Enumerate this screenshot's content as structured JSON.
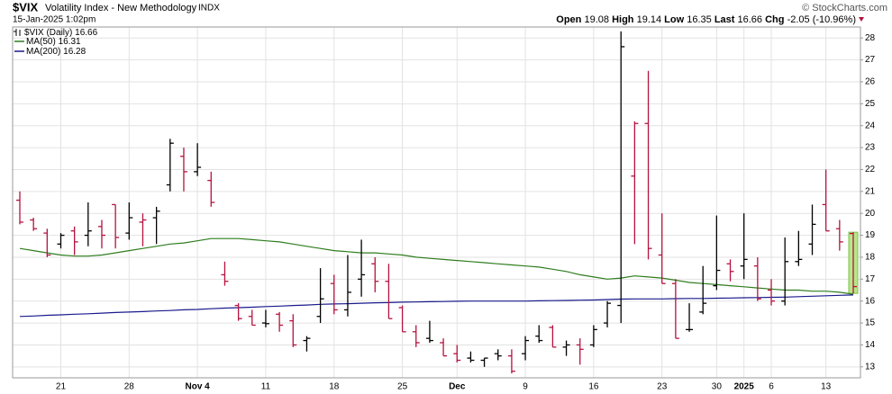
{
  "chart_data": {
    "type": "ohlc",
    "title": "$VIX",
    "subtitle": "Volatility Index - New Methodology",
    "exchange": "INDX",
    "date": "15-Jan-2025 1:02pm",
    "credit": "© StockCharts.com",
    "quote_labels": [
      "Open",
      "High",
      "Low",
      "Last",
      "Chg"
    ],
    "change": "-2.05 (-10.96%)",
    "price_name": "$VIX (Daily)",
    "up_color": "#000000",
    "down_color": "#b5123f",
    "highlight_color": "#b8e68a",
    "categories": [
      null,
      null,
      null,
      "21",
      null,
      null,
      null,
      null,
      "28",
      null,
      null,
      null,
      null,
      "Nov 4",
      null,
      null,
      null,
      null,
      "11",
      null,
      null,
      null,
      null,
      "18",
      null,
      null,
      null,
      null,
      "25",
      null,
      null,
      null,
      "Dec",
      null,
      null,
      null,
      null,
      "9",
      null,
      null,
      null,
      null,
      "16",
      null,
      null,
      null,
      null,
      "23",
      null,
      null,
      null,
      "30",
      null,
      "2025",
      null,
      "6",
      null,
      null,
      null,
      "13",
      null,
      null
    ],
    "open": [
      20.6,
      19.7,
      19.1,
      18.6,
      19.2,
      19.0,
      19.4,
      20.4,
      19.1,
      19.6,
      19.8,
      21.3,
      22.6,
      21.9,
      21.5,
      17.2,
      15.8,
      15.3,
      15.0,
      15.4,
      15.1,
      14.2,
      15.3,
      16.8,
      15.6,
      17.0,
      17.7,
      16.9,
      15.7,
      14.6,
      14.3,
      14.1,
      13.6,
      13.4,
      13.3,
      13.6,
      13.5,
      13.6,
      14.4,
      14.8,
      13.9,
      14.0,
      14.0,
      15.0,
      15.8,
      21.7,
      24.1,
      18.1,
      16.8,
      14.7,
      15.5,
      16.7,
      17.7,
      17.6,
      17.6,
      16.5,
      16.0,
      17.8,
      18.6,
      20.4,
      19.3,
      19.08
    ],
    "high": [
      21.0,
      19.8,
      19.3,
      19.1,
      19.4,
      20.5,
      19.7,
      20.4,
      20.5,
      20.0,
      20.3,
      23.4,
      23.0,
      23.2,
      21.9,
      17.8,
      15.9,
      15.6,
      15.6,
      15.5,
      15.4,
      14.4,
      17.5,
      17.2,
      18.1,
      18.8,
      18.0,
      17.7,
      15.8,
      14.9,
      15.1,
      14.3,
      14.0,
      13.7,
      13.4,
      13.8,
      13.8,
      14.4,
      14.9,
      14.9,
      14.2,
      14.3,
      14.9,
      16.0,
      28.3,
      24.2,
      26.5,
      20.0,
      17.0,
      15.9,
      17.6,
      19.9,
      17.9,
      20.0,
      18.0,
      17.0,
      18.9,
      19.2,
      20.4,
      22.0,
      19.7,
      19.14
    ],
    "low": [
      19.5,
      19.2,
      18.0,
      18.4,
      18.1,
      18.5,
      18.4,
      18.4,
      18.8,
      18.5,
      18.6,
      21.0,
      21.0,
      21.7,
      20.3,
      16.7,
      15.1,
      14.9,
      14.8,
      14.6,
      13.9,
      13.7,
      15.0,
      15.4,
      15.3,
      16.2,
      16.4,
      15.2,
      14.6,
      13.9,
      14.1,
      13.5,
      13.2,
      13.2,
      13.0,
      13.3,
      12.7,
      13.3,
      14.1,
      13.9,
      13.5,
      13.1,
      13.9,
      14.8,
      15.0,
      18.6,
      17.9,
      16.8,
      14.3,
      14.6,
      15.4,
      16.5,
      16.9,
      17.0,
      16.0,
      15.8,
      15.8,
      17.6,
      18.1,
      19.2,
      18.3,
      16.35
    ],
    "close": [
      19.6,
      19.3,
      18.1,
      19.0,
      18.7,
      19.2,
      19.0,
      18.9,
      19.8,
      19.7,
      20.1,
      23.2,
      21.9,
      22.1,
      20.5,
      16.9,
      15.2,
      14.9,
      14.97,
      14.9,
      14.0,
      14.3,
      16.1,
      15.6,
      16.4,
      17.2,
      16.9,
      15.2,
      14.6,
      14.1,
      14.2,
      13.5,
      13.3,
      13.3,
      13.4,
      13.5,
      12.8,
      14.2,
      14.2,
      13.9,
      14.0,
      13.8,
      14.7,
      15.9,
      27.6,
      24.1,
      18.4,
      16.8,
      14.3,
      14.7,
      15.9,
      17.4,
      17.35,
      17.9,
      16.1,
      16.0,
      17.8,
      17.9,
      19.5,
      19.2,
      18.7,
      16.66
    ],
    "series": [
      {
        "name": "MA(50)",
        "color": "#2e7d1e",
        "values": [
          18.4,
          18.3,
          18.2,
          18.1,
          18.05,
          18.05,
          18.1,
          18.2,
          18.3,
          18.4,
          18.5,
          18.6,
          18.65,
          18.75,
          18.85,
          18.85,
          18.85,
          18.8,
          18.75,
          18.7,
          18.6,
          18.5,
          18.4,
          18.3,
          18.25,
          18.2,
          18.2,
          18.15,
          18.1,
          18.0,
          17.95,
          17.9,
          17.85,
          17.8,
          17.75,
          17.7,
          17.65,
          17.6,
          17.55,
          17.45,
          17.35,
          17.2,
          17.1,
          17.0,
          17.05,
          17.15,
          17.1,
          17.05,
          16.95,
          16.85,
          16.8,
          16.75,
          16.7,
          16.65,
          16.6,
          16.55,
          16.5,
          16.5,
          16.45,
          16.45,
          16.4,
          16.31
        ]
      },
      {
        "name": "MA(200)",
        "color": "#1a1a8c",
        "values": [
          15.3,
          15.32,
          15.35,
          15.37,
          15.4,
          15.42,
          15.45,
          15.48,
          15.5,
          15.52,
          15.55,
          15.57,
          15.6,
          15.62,
          15.65,
          15.68,
          15.7,
          15.72,
          15.75,
          15.77,
          15.8,
          15.82,
          15.85,
          15.87,
          15.88,
          15.9,
          15.92,
          15.93,
          15.95,
          15.96,
          15.97,
          15.98,
          15.99,
          16.0,
          16.0,
          16.0,
          16.0,
          16.0,
          16.01,
          16.02,
          16.03,
          16.04,
          16.05,
          16.07,
          16.09,
          16.1,
          16.1,
          16.1,
          16.11,
          16.12,
          16.12,
          16.13,
          16.14,
          16.15,
          16.16,
          16.17,
          16.18,
          16.2,
          16.22,
          16.24,
          16.26,
          16.28
        ]
      }
    ],
    "ylim": [
      12.5,
      28.5
    ],
    "yticks": [
      13,
      14,
      15,
      16,
      17,
      18,
      19,
      20,
      21,
      22,
      23,
      24,
      25,
      26,
      27,
      28
    ],
    "grid": true
  }
}
